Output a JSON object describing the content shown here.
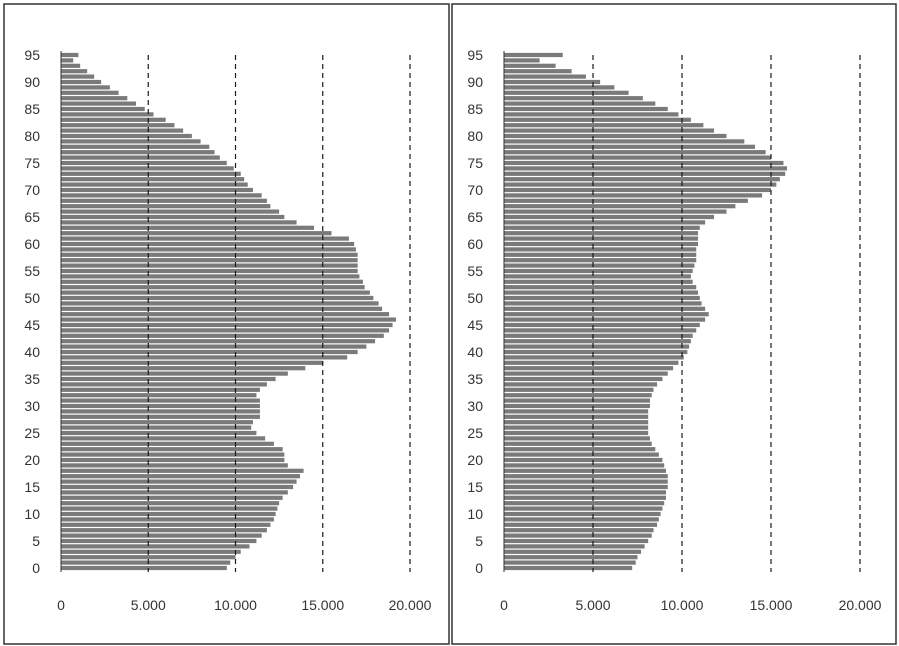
{
  "chart_data": [
    {
      "type": "bar",
      "orientation": "horizontal",
      "xlim": [
        0,
        20000
      ],
      "ylim": [
        0,
        95
      ],
      "x_ticks": [
        "0",
        "5.000",
        "10.000",
        "15.000",
        "20.000"
      ],
      "y_ticks": [
        "0",
        "5",
        "10",
        "15",
        "20",
        "25",
        "30",
        "35",
        "40",
        "45",
        "50",
        "55",
        "60",
        "65",
        "70",
        "75",
        "80",
        "85",
        "90",
        "95"
      ],
      "gridlines": "vertical dashed",
      "bar_color": "#7a7a7a",
      "categories": [
        0,
        1,
        2,
        3,
        4,
        5,
        6,
        7,
        8,
        9,
        10,
        11,
        12,
        13,
        14,
        15,
        16,
        17,
        18,
        19,
        20,
        21,
        22,
        23,
        24,
        25,
        26,
        27,
        28,
        29,
        30,
        31,
        32,
        33,
        34,
        35,
        36,
        37,
        38,
        39,
        40,
        41,
        42,
        43,
        44,
        45,
        46,
        47,
        48,
        49,
        50,
        51,
        52,
        53,
        54,
        55,
        56,
        57,
        58,
        59,
        60,
        61,
        62,
        63,
        64,
        65,
        66,
        67,
        68,
        69,
        70,
        71,
        72,
        73,
        74,
        75,
        76,
        77,
        78,
        79,
        80,
        81,
        82,
        83,
        84,
        85,
        86,
        87,
        88,
        89,
        90,
        91,
        92,
        93,
        94,
        95
      ],
      "values": [
        9500,
        9700,
        10000,
        10300,
        10800,
        11200,
        11500,
        11800,
        12000,
        12200,
        12300,
        12400,
        12500,
        12700,
        13000,
        13300,
        13500,
        13700,
        13900,
        13000,
        12800,
        12800,
        12700,
        12200,
        11700,
        11200,
        10900,
        11000,
        11400,
        11400,
        11400,
        11400,
        11200,
        11400,
        11800,
        12300,
        13000,
        14000,
        15000,
        16400,
        17000,
        17500,
        18000,
        18500,
        18800,
        19000,
        19200,
        18800,
        18400,
        18200,
        17900,
        17700,
        17400,
        17300,
        17100,
        17000,
        17000,
        17000,
        17000,
        16900,
        16800,
        16500,
        15500,
        14500,
        13500,
        12800,
        12500,
        12000,
        11800,
        11500,
        11000,
        10700,
        10500,
        10300,
        9900,
        9500,
        9100,
        8800,
        8500,
        8000,
        7500,
        7000,
        6500,
        6000,
        5300,
        4800,
        4300,
        3800,
        3300,
        2800,
        2300,
        1900,
        1500,
        1100,
        700,
        1000
      ]
    },
    {
      "type": "bar",
      "orientation": "horizontal",
      "xlim": [
        0,
        20000
      ],
      "ylim": [
        0,
        95
      ],
      "x_ticks": [
        "0",
        "5.000",
        "10.000",
        "15.000",
        "20.000"
      ],
      "y_ticks": [
        "0",
        "5",
        "10",
        "15",
        "20",
        "25",
        "30",
        "35",
        "40",
        "45",
        "50",
        "55",
        "60",
        "65",
        "70",
        "75",
        "80",
        "85",
        "90",
        "95"
      ],
      "gridlines": "vertical dashed",
      "bar_color": "#7a7a7a",
      "categories": [
        0,
        1,
        2,
        3,
        4,
        5,
        6,
        7,
        8,
        9,
        10,
        11,
        12,
        13,
        14,
        15,
        16,
        17,
        18,
        19,
        20,
        21,
        22,
        23,
        24,
        25,
        26,
        27,
        28,
        29,
        30,
        31,
        32,
        33,
        34,
        35,
        36,
        37,
        38,
        39,
        40,
        41,
        42,
        43,
        44,
        45,
        46,
        47,
        48,
        49,
        50,
        51,
        52,
        53,
        54,
        55,
        56,
        57,
        58,
        59,
        60,
        61,
        62,
        63,
        64,
        65,
        66,
        67,
        68,
        69,
        70,
        71,
        72,
        73,
        74,
        75,
        76,
        77,
        78,
        79,
        80,
        81,
        82,
        83,
        84,
        85,
        86,
        87,
        88,
        89,
        90,
        91,
        92,
        93,
        94,
        95
      ],
      "values": [
        7200,
        7400,
        7500,
        7700,
        7900,
        8100,
        8300,
        8400,
        8600,
        8700,
        8800,
        8900,
        9000,
        9100,
        9100,
        9200,
        9200,
        9200,
        9100,
        9000,
        8900,
        8700,
        8500,
        8300,
        8200,
        8100,
        8100,
        8100,
        8100,
        8100,
        8200,
        8200,
        8300,
        8400,
        8600,
        8900,
        9200,
        9500,
        9800,
        10100,
        10300,
        10400,
        10500,
        10600,
        10800,
        11000,
        11300,
        11500,
        11300,
        11100,
        11000,
        10900,
        10800,
        10600,
        10500,
        10600,
        10700,
        10800,
        10800,
        10800,
        10900,
        10900,
        10900,
        11000,
        11300,
        11800,
        12500,
        13000,
        13700,
        14500,
        15000,
        15300,
        15500,
        15800,
        15900,
        15700,
        15000,
        14700,
        14100,
        13500,
        12500,
        11800,
        11200,
        10500,
        9800,
        9200,
        8500,
        7800,
        7000,
        6200,
        5400,
        4600,
        3800,
        2900,
        2000,
        3300
      ]
    }
  ]
}
